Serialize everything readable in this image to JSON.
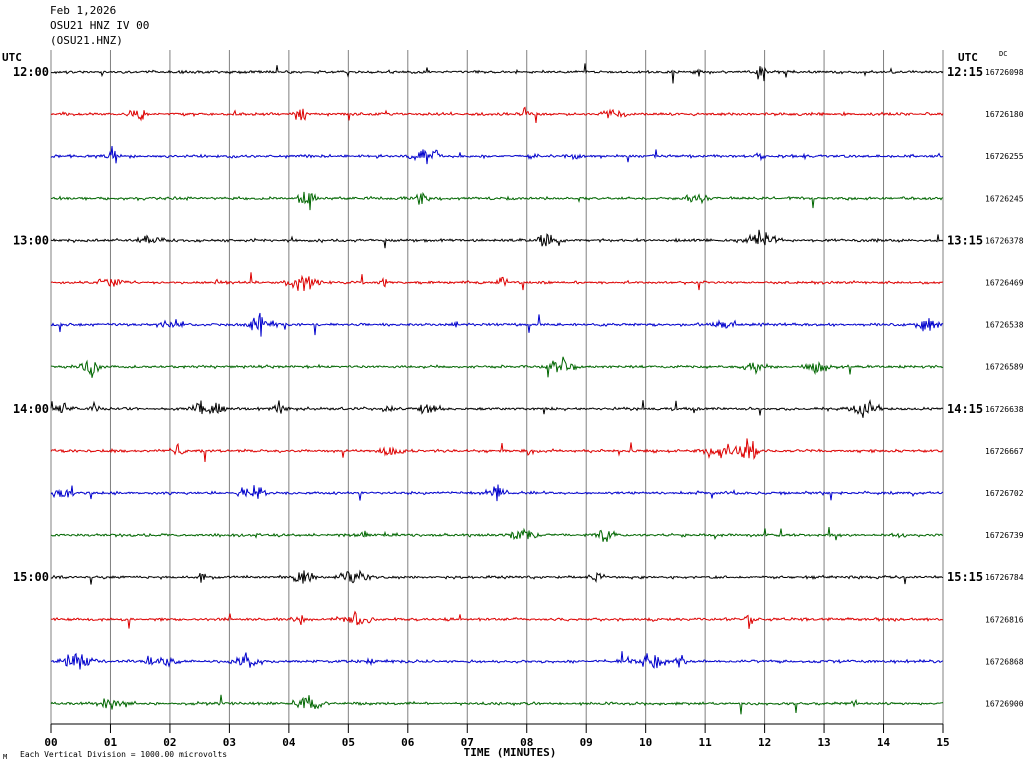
{
  "header": {
    "date": "Feb 1,2026",
    "station_line": "OSU21 HNZ IV 00",
    "station_code": "(OSU21.HNZ)"
  },
  "left_tz": "UTC",
  "right_tz": "UTC",
  "dc_label": "DC",
  "footer": {
    "scale_note": "Each Vertical Division = 1000.00 microvolts",
    "scale_mark": "M"
  },
  "colors": {
    "cycle": [
      "#000000",
      "#dd0000",
      "#0000cc",
      "#006600"
    ],
    "grid": "#808080"
  },
  "chart_data": {
    "type": "line",
    "xlabel": "TIME (MINUTES)",
    "x_ticks": [
      "00",
      "01",
      "02",
      "03",
      "04",
      "05",
      "06",
      "07",
      "08",
      "09",
      "10",
      "11",
      "12",
      "13",
      "14",
      "15"
    ],
    "xlim": [
      0,
      15
    ],
    "rows": [
      {
        "left": "12:00",
        "right": "12:15",
        "dc": "16726098"
      },
      {
        "left": "",
        "right": "",
        "dc": "16726180"
      },
      {
        "left": "",
        "right": "",
        "dc": "16726255"
      },
      {
        "left": "",
        "right": "",
        "dc": "16726245"
      },
      {
        "left": "13:00",
        "right": "13:15",
        "dc": "16726378"
      },
      {
        "left": "",
        "right": "",
        "dc": "16726469"
      },
      {
        "left": "",
        "right": "",
        "dc": "16726538"
      },
      {
        "left": "",
        "right": "",
        "dc": "16726589"
      },
      {
        "left": "14:00",
        "right": "14:15",
        "dc": "16726638"
      },
      {
        "left": "",
        "right": "",
        "dc": "16726667"
      },
      {
        "left": "",
        "right": "",
        "dc": "16726702"
      },
      {
        "left": "",
        "right": "",
        "dc": "16726739"
      },
      {
        "left": "15:00",
        "right": "15:15",
        "dc": "16726784"
      },
      {
        "left": "",
        "right": "",
        "dc": "16726816"
      },
      {
        "left": "",
        "right": "",
        "dc": "16726868"
      },
      {
        "left": "",
        "right": "",
        "dc": "16726900"
      }
    ]
  }
}
